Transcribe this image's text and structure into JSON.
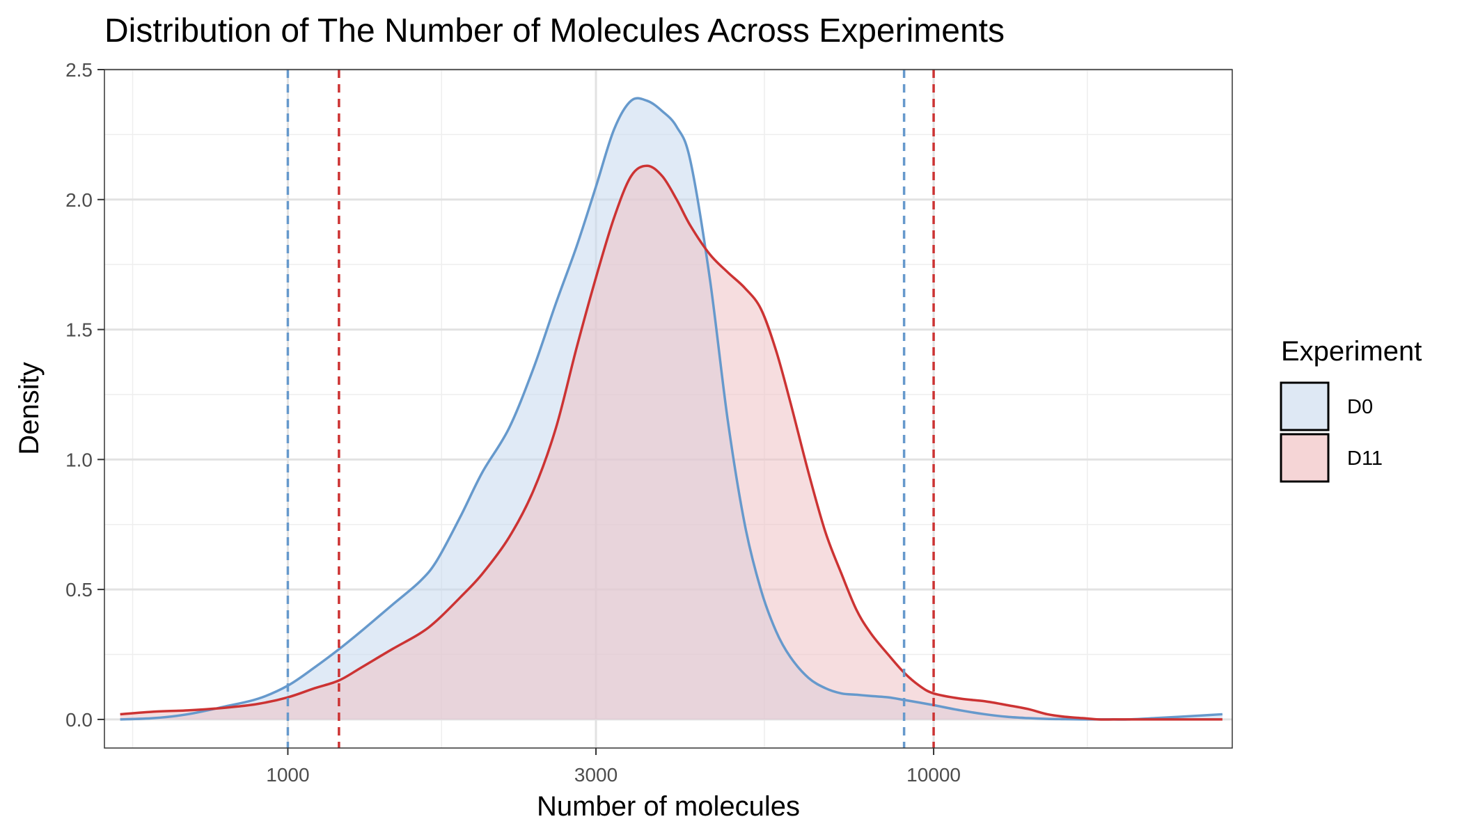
{
  "chart_data": {
    "type": "area",
    "title": "Distribution of The Number of Molecules Across Experiments",
    "xlabel": "Number of molecules",
    "ylabel": "Density",
    "x_scale": "log10",
    "xlim": [
      520,
      29000
    ],
    "ylim": [
      -0.11,
      2.5
    ],
    "x_ticks": [
      1000,
      3000,
      10000
    ],
    "x_tick_labels": [
      "1000",
      "3000",
      "10000"
    ],
    "x_minor_ticks": [
      575,
      1730,
      5470,
      17300
    ],
    "y_ticks": [
      0.0,
      0.5,
      1.0,
      1.5,
      2.0,
      2.5
    ],
    "y_tick_labels": [
      "0.0",
      "0.5",
      "1.0",
      "1.5",
      "2.0",
      "2.5"
    ],
    "grid": true,
    "legend": {
      "title": "Experiment",
      "position": "right"
    },
    "series": [
      {
        "name": "D0",
        "line_color": "#6699CC",
        "fill_color": "#C6D9EE",
        "x": [
          550,
          620,
          700,
          800,
          900,
          1000,
          1100,
          1200,
          1300,
          1450,
          1600,
          1700,
          1850,
          2000,
          2200,
          2400,
          2600,
          2800,
          3000,
          3200,
          3400,
          3600,
          3800,
          4000,
          4200,
          4500,
          4800,
          5100,
          5400,
          5700,
          6000,
          6400,
          6800,
          7200,
          7600,
          8000,
          8500,
          9000,
          9500,
          10000,
          11000,
          12000,
          13000,
          14000,
          15000,
          16000,
          17000,
          18000,
          19000,
          20000,
          22000,
          24000,
          26000,
          28000
        ],
        "y": [
          0.0,
          0.005,
          0.02,
          0.05,
          0.08,
          0.13,
          0.2,
          0.27,
          0.34,
          0.44,
          0.53,
          0.61,
          0.78,
          0.95,
          1.12,
          1.35,
          1.6,
          1.82,
          2.05,
          2.27,
          2.38,
          2.38,
          2.34,
          2.28,
          2.15,
          1.7,
          1.15,
          0.75,
          0.5,
          0.34,
          0.24,
          0.16,
          0.12,
          0.1,
          0.095,
          0.09,
          0.085,
          0.075,
          0.065,
          0.055,
          0.035,
          0.02,
          0.01,
          0.005,
          0.002,
          0.001,
          0.0,
          0.0,
          0.0,
          0.0,
          0.005,
          0.01,
          0.015,
          0.02
        ]
      },
      {
        "name": "D11",
        "line_color": "#CC3333",
        "fill_color": "#EFC1C4",
        "x": [
          550,
          620,
          700,
          800,
          900,
          1000,
          1100,
          1200,
          1300,
          1450,
          1600,
          1700,
          1850,
          2000,
          2200,
          2400,
          2600,
          2800,
          3000,
          3200,
          3400,
          3600,
          3800,
          4000,
          4200,
          4500,
          4800,
          5100,
          5400,
          5700,
          6000,
          6400,
          6800,
          7200,
          7600,
          8000,
          8500,
          9000,
          9500,
          10000,
          11000,
          12000,
          13000,
          14000,
          15000,
          16000,
          17000,
          18000,
          19000,
          20000,
          22000,
          24000,
          26000,
          28000
        ],
        "y": [
          0.02,
          0.03,
          0.035,
          0.045,
          0.06,
          0.085,
          0.12,
          0.15,
          0.2,
          0.27,
          0.33,
          0.38,
          0.47,
          0.56,
          0.7,
          0.88,
          1.12,
          1.43,
          1.7,
          1.93,
          2.09,
          2.13,
          2.09,
          2.0,
          1.9,
          1.79,
          1.72,
          1.66,
          1.58,
          1.42,
          1.22,
          0.95,
          0.72,
          0.56,
          0.42,
          0.33,
          0.25,
          0.18,
          0.13,
          0.1,
          0.08,
          0.07,
          0.055,
          0.04,
          0.02,
          0.01,
          0.005,
          0.0,
          0.0,
          0.0,
          0.0,
          0.0,
          0.0,
          0.0
        ]
      }
    ],
    "vlines": [
      {
        "x": 1000,
        "series": "D0",
        "color": "#6699CC",
        "style": "dashed"
      },
      {
        "x": 1200,
        "series": "D11",
        "color": "#CC3333",
        "style": "dashed"
      },
      {
        "x": 9000,
        "series": "D0",
        "color": "#6699CC",
        "style": "dashed"
      },
      {
        "x": 10000,
        "series": "D11",
        "color": "#CC3333",
        "style": "dashed"
      }
    ]
  }
}
